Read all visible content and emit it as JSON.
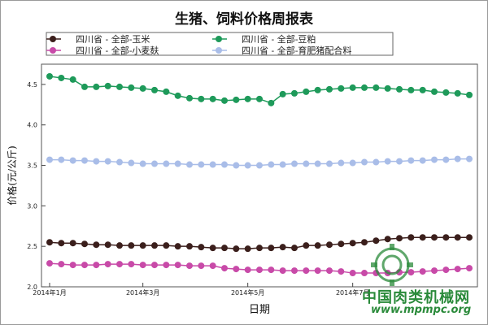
{
  "chart_data": {
    "type": "line",
    "title": "生猪、饲料价格周报表",
    "xlabel": "日期",
    "ylabel": "价格(元/公斤)",
    "ylim": [
      2.0,
      4.75
    ],
    "yticks": [
      "2.0",
      "2.5",
      "3.0",
      "3.5",
      "4.0",
      "4.5"
    ],
    "xticks": [
      "2014年1月",
      "2014年3月",
      "2014年5月",
      "2014年7月"
    ],
    "legend_position": "top",
    "grid": false,
    "series": [
      {
        "name": "四川省 - 全部-玉米",
        "color": "#3b1f1c",
        "values": [
          2.55,
          2.54,
          2.54,
          2.53,
          2.52,
          2.52,
          2.51,
          2.51,
          2.51,
          2.51,
          2.51,
          2.5,
          2.5,
          2.49,
          2.48,
          2.48,
          2.47,
          2.47,
          2.48,
          2.48,
          2.49,
          2.48,
          2.51,
          2.51,
          2.52,
          2.53,
          2.54,
          2.55,
          2.57,
          2.59,
          2.6,
          2.61,
          2.61,
          2.61,
          2.61,
          2.61,
          2.61
        ]
      },
      {
        "name": "四川省 - 全部-小麦麸",
        "color": "#c84aa8",
        "values": [
          2.29,
          2.28,
          2.27,
          2.27,
          2.27,
          2.28,
          2.28,
          2.28,
          2.27,
          2.27,
          2.27,
          2.27,
          2.26,
          2.26,
          2.26,
          2.23,
          2.22,
          2.21,
          2.21,
          2.21,
          2.2,
          2.2,
          2.2,
          2.2,
          2.2,
          2.19,
          2.17,
          2.17,
          2.17,
          2.17,
          2.18,
          2.18,
          2.19,
          2.2,
          2.21,
          2.22,
          2.23
        ]
      },
      {
        "name": "四川省 - 全部-豆粕",
        "color": "#1e9a5a",
        "values": [
          4.6,
          4.58,
          4.56,
          4.47,
          4.47,
          4.48,
          4.47,
          4.46,
          4.45,
          4.43,
          4.41,
          4.36,
          4.33,
          4.32,
          4.32,
          4.3,
          4.31,
          4.32,
          4.32,
          4.27,
          4.38,
          4.39,
          4.41,
          4.43,
          4.44,
          4.45,
          4.46,
          4.46,
          4.46,
          4.45,
          4.44,
          4.43,
          4.43,
          4.41,
          4.4,
          4.39,
          4.37
        ]
      },
      {
        "name": "四川省 - 全部-育肥猪配合料",
        "color": "#a9bde8",
        "values": [
          3.57,
          3.57,
          3.56,
          3.56,
          3.55,
          3.55,
          3.54,
          3.53,
          3.52,
          3.52,
          3.52,
          3.52,
          3.51,
          3.51,
          3.51,
          3.51,
          3.5,
          3.5,
          3.5,
          3.51,
          3.51,
          3.52,
          3.52,
          3.52,
          3.52,
          3.53,
          3.53,
          3.54,
          3.54,
          3.55,
          3.55,
          3.56,
          3.56,
          3.57,
          3.57,
          3.58,
          3.58
        ]
      }
    ]
  },
  "watermark": {
    "site_name": "中国肉类机械网",
    "url": "www.mpmpc.org",
    "logo_color": "#2a8a3a"
  }
}
